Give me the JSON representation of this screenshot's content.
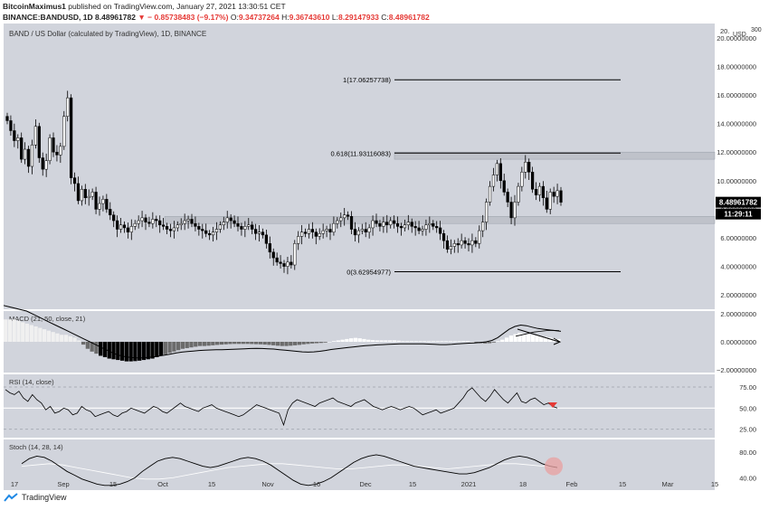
{
  "header": {
    "author": "BitcoinMaximus1",
    "published_text": "published on TradingView.com, January 27, 2021 13:30:51 CET",
    "symbol_line": "BINANCE:BANDUSD, 1D",
    "close_value": "8.48961782",
    "change_text": "− 0.85738483 (−9.17%)",
    "ohlc": {
      "o_label": "O:",
      "o": "9.34737264",
      "h_label": "H:",
      "h": "9.36743610",
      "l_label": "L:",
      "l": "8.29147933",
      "c_label": "C:",
      "c": "8.48961782"
    }
  },
  "footer": {
    "brand": "TradingView"
  },
  "colors": {
    "panel_bg": "#d1d4dc",
    "candle_up": "#ffffff",
    "candle_down": "#000000",
    "line": "#000000",
    "price_tag": "#000000",
    "arrow": "#e53935",
    "stoch_circle": "#e8a0a0",
    "zone": "#bfc2ca"
  },
  "chart_data": [
    {
      "type": "candlestick",
      "title": "BAND / US Dollar (calculated by TradingView), 1D, BINANCE",
      "currency_label": "USD",
      "y_ticks": [
        2,
        4,
        6,
        8,
        10,
        12,
        14,
        16,
        18,
        20
      ],
      "y_tick_labels": [
        "2.00000000",
        "4.00000000",
        "6.00000000",
        "8.00000000",
        "10.00000000",
        "12.00000000",
        "14.00000000",
        "16.00000000",
        "18.00000000",
        "20.00000000"
      ],
      "top_tick_label": "20.",
      "extra_label": "300",
      "ylim": [
        1,
        21
      ],
      "x_tick_labels": [
        "17",
        "Sep",
        "15",
        "Oct",
        "15",
        "Nov",
        "16",
        "Dec",
        "15",
        "2021",
        "18",
        "Feb",
        "15",
        "Mar",
        "15"
      ],
      "fib_levels": [
        {
          "label": "1(17.06257738)",
          "value": 17.06257738
        },
        {
          "label": "0.618(11.93116083)",
          "value": 11.93116083
        },
        {
          "label": "0(3.62954977)",
          "value": 3.62954977
        }
      ],
      "zones": [
        {
          "low": 11.5,
          "high": 12.0
        },
        {
          "low": 7.0,
          "high": 7.5
        }
      ],
      "last_price_label": "8.48961782",
      "countdown_label": "11:29:11",
      "close_series": [
        14.2,
        13.5,
        12.8,
        13.0,
        11.5,
        12.2,
        11.0,
        12.5,
        13.8,
        11.6,
        10.8,
        11.4,
        13.0,
        12.0,
        11.8,
        12.4,
        14.5,
        15.8,
        10.2,
        9.8,
        8.6,
        9.4,
        8.8,
        8.9,
        9.2,
        8.0,
        8.4,
        8.7,
        8.0,
        7.6,
        7.2,
        6.6,
        6.9,
        6.7,
        6.4,
        6.8,
        7.0,
        7.2,
        7.4,
        7.1,
        7.0,
        7.3,
        7.2,
        6.9,
        6.8,
        6.6,
        6.5,
        6.7,
        6.9,
        7.0,
        7.2,
        7.3,
        7.0,
        6.8,
        6.6,
        6.5,
        6.3,
        6.2,
        6.4,
        6.6,
        6.9,
        7.1,
        7.4,
        7.2,
        7.0,
        6.8,
        6.6,
        6.8,
        6.9,
        6.6,
        6.3,
        6.4,
        6.2,
        5.6,
        5.0,
        4.6,
        4.3,
        4.2,
        4.0,
        4.3,
        4.1,
        5.6,
        6.1,
        6.4,
        6.3,
        6.6,
        6.4,
        6.1,
        6.3,
        6.5,
        6.6,
        6.4,
        7.0,
        7.2,
        7.4,
        7.6,
        7.5,
        6.6,
        6.2,
        6.5,
        6.6,
        6.4,
        6.7,
        7.2,
        7.0,
        6.8,
        7.1,
        6.9,
        7.2,
        7.0,
        6.8,
        6.7,
        6.9,
        7.1,
        6.8,
        6.7,
        6.5,
        6.6,
        6.9,
        7.0,
        6.8,
        6.7,
        6.3,
        5.8,
        5.2,
        5.4,
        5.6,
        5.5,
        5.8,
        5.6,
        5.5,
        5.8,
        5.6,
        6.5,
        7.1,
        8.5,
        9.6,
        10.4,
        11.2,
        10.0,
        9.2,
        8.5,
        7.4,
        8.5,
        9.6,
        10.6,
        11.3,
        10.6,
        9.4,
        9.0,
        9.6,
        8.8,
        8.0,
        9.2,
        8.9,
        9.3,
        8.49
      ],
      "panel_bg": "#d1d4dc"
    },
    {
      "type": "line",
      "title": "MACD (21, 50, close, 21)",
      "y_tick_labels": [
        "2.00000000",
        "0.00000000",
        "−2.00000000"
      ],
      "ylim": [
        -2.2,
        2.2
      ],
      "histogram": [
        1.6,
        1.6,
        1.6,
        1.5,
        1.4,
        1.3,
        1.2,
        1.1,
        1.0,
        0.9,
        0.8,
        0.7,
        0.6,
        0.5,
        0.5,
        0.4,
        0.3,
        0.1,
        -0.2,
        -0.5,
        -0.7,
        -0.85,
        -1.0,
        -1.1,
        -1.2,
        -1.25,
        -1.3,
        -1.35,
        -1.4,
        -1.4,
        -1.38,
        -1.35,
        -1.3,
        -1.25,
        -1.2,
        -1.1,
        -1.0,
        -0.9,
        -0.8,
        -0.7,
        -0.6,
        -0.5,
        -0.45,
        -0.4,
        -0.35,
        -0.3,
        -0.3,
        -0.28,
        -0.25,
        -0.22,
        -0.2,
        -0.18,
        -0.16,
        -0.15,
        -0.15,
        -0.15,
        -0.15,
        -0.16,
        -0.17,
        -0.18,
        -0.2,
        -0.22,
        -0.25,
        -0.28,
        -0.3,
        -0.3,
        -0.28,
        -0.25,
        -0.22,
        -0.18,
        -0.15,
        -0.12,
        -0.1,
        -0.08,
        -0.05,
        0.0,
        0.05,
        0.1,
        0.15,
        0.2,
        0.25,
        0.28,
        0.25,
        0.2,
        0.15,
        0.12,
        0.1,
        0.1,
        0.1,
        0.1,
        0.1,
        0.08,
        0.05,
        0.05,
        0.05,
        0.05,
        0.05,
        0.05,
        0.05,
        0.05,
        0.05,
        0.05,
        0.05,
        0.05,
        0.05,
        0.05,
        0.05,
        0.05,
        0.0,
        -0.05,
        -0.1,
        -0.12,
        -0.1,
        -0.05,
        0.05,
        0.15,
        0.3,
        0.45,
        0.55,
        0.65,
        0.6,
        0.55,
        0.5,
        0.45,
        0.4,
        0.35,
        0.3,
        0.25,
        0.2
      ],
      "macd_line": [
        2.6,
        2.5,
        2.4,
        2.3,
        2.2,
        2.0,
        1.8,
        1.6,
        1.4,
        1.2,
        1.0,
        0.8,
        0.6,
        0.4,
        0.2,
        0.0,
        -0.2,
        -0.4,
        -0.6,
        -0.8,
        -0.95,
        -1.05,
        -1.12,
        -1.15,
        -1.15,
        -1.12,
        -1.08,
        -1.02,
        -0.95,
        -0.88,
        -0.8,
        -0.74,
        -0.7,
        -0.66,
        -0.62,
        -0.6,
        -0.58,
        -0.57,
        -0.56,
        -0.55,
        -0.54,
        -0.52,
        -0.5,
        -0.48,
        -0.47,
        -0.48,
        -0.5,
        -0.52,
        -0.56,
        -0.6,
        -0.64,
        -0.68,
        -0.72,
        -0.74,
        -0.72,
        -0.68,
        -0.62,
        -0.55,
        -0.5,
        -0.45,
        -0.4,
        -0.36,
        -0.32,
        -0.28,
        -0.25,
        -0.22,
        -0.2,
        -0.18,
        -0.16,
        -0.15,
        -0.15,
        -0.14,
        -0.14,
        -0.15,
        -0.16,
        -0.18,
        -0.2,
        -0.2,
        -0.18,
        -0.15,
        -0.12,
        -0.1,
        -0.08,
        -0.05,
        0.0,
        0.1,
        0.3,
        0.6,
        0.9,
        1.1,
        1.2,
        1.15,
        1.05,
        0.95,
        0.9,
        0.85,
        0.8,
        0.75
      ],
      "signal_line": [
        0.4,
        0.5,
        0.6,
        0.7,
        0.75,
        0.8,
        0.82,
        0.8
      ],
      "panel_bg": "#d1d4dc"
    },
    {
      "type": "line",
      "title": "RSI (14, close)",
      "y_tick_labels": [
        "75.00",
        "50.00",
        "25.00"
      ],
      "ylim": [
        15,
        90
      ],
      "values": [
        72,
        68,
        66,
        70,
        62,
        58,
        66,
        60,
        56,
        48,
        52,
        44,
        46,
        50,
        48,
        42,
        44,
        52,
        48,
        46,
        40,
        42,
        44,
        46,
        42,
        40,
        44,
        46,
        50,
        48,
        46,
        44,
        48,
        52,
        50,
        46,
        44,
        48,
        52,
        56,
        52,
        50,
        48,
        46,
        50,
        52,
        54,
        50,
        48,
        46,
        44,
        42,
        40,
        42,
        46,
        50,
        54,
        52,
        50,
        48,
        46,
        44,
        30,
        48,
        56,
        60,
        58,
        56,
        54,
        52,
        56,
        58,
        60,
        62,
        58,
        56,
        54,
        52,
        56,
        58,
        60,
        56,
        52,
        50,
        48,
        50,
        52,
        50,
        48,
        50,
        52,
        50,
        46,
        42,
        44,
        46,
        48,
        44,
        46,
        48,
        50,
        56,
        62,
        70,
        74,
        68,
        62,
        58,
        64,
        72,
        66,
        60,
        56,
        62,
        68,
        58,
        56,
        60,
        62,
        58,
        54,
        56,
        52,
        50
      ],
      "panel_bg": "#d1d4dc"
    },
    {
      "type": "line",
      "title": "Stoch (14, 28, 14)",
      "y_tick_labels": [
        "80.00",
        "40.00"
      ],
      "ylim": [
        15,
        100
      ],
      "k_values": [
        62,
        70,
        74,
        72,
        66,
        58,
        50,
        44,
        38,
        34,
        30,
        28,
        28,
        30,
        34,
        40,
        50,
        58,
        66,
        70,
        72,
        70,
        66,
        62,
        58,
        56,
        58,
        62,
        66,
        70,
        72,
        70,
        66,
        60,
        52,
        44,
        36,
        30,
        28,
        30,
        34,
        40,
        48,
        56,
        64,
        70,
        74,
        76,
        74,
        70,
        66,
        62,
        58,
        56,
        54,
        52,
        50,
        48,
        46,
        46,
        48,
        52,
        56,
        62,
        68,
        72,
        74,
        72,
        68,
        62,
        58,
        56
      ],
      "d_values": [
        58,
        60,
        62,
        60,
        56,
        52,
        48,
        44,
        40,
        38,
        38,
        40,
        44,
        48,
        52,
        56,
        58,
        60,
        62,
        62,
        60,
        58,
        56,
        54,
        54,
        56,
        58,
        60,
        60,
        58,
        56,
        54,
        56,
        58,
        60,
        62,
        62,
        60,
        58,
        56
      ],
      "panel_bg": "#d1d4dc"
    }
  ]
}
